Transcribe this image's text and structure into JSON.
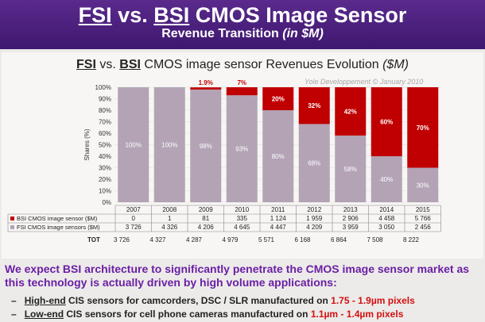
{
  "header": {
    "title_fsi": "FSI",
    "title_vs": "vs.",
    "title_bsi": "BSI",
    "title_rest": "CMOS Image Sensor",
    "subtitle_main": "Revenue Transition",
    "subtitle_unit": "(in $M)"
  },
  "chart_data": {
    "type": "bar",
    "stacked": true,
    "title_fsi": "FSI",
    "title_vs": "vs.",
    "title_bsi": "BSI",
    "title_rest": "CMOS image sensor Revenues Evolution",
    "title_unit": "($M)",
    "credit": "Yole Developpement © January 2010",
    "ylabel": "Shares (%)",
    "ylim": [
      0,
      100
    ],
    "yticks": [
      "0%",
      "10%",
      "20%",
      "30%",
      "40%",
      "50%",
      "60%",
      "70%",
      "80%",
      "90%",
      "100%"
    ],
    "categories": [
      "2007",
      "2008",
      "2009",
      "2010",
      "2011",
      "2012",
      "2013",
      "2014",
      "2015"
    ],
    "series": [
      {
        "name": "FSI CMOS image sensors ($M)",
        "color": "#b3a3b5",
        "shares": [
          100,
          100,
          98,
          93,
          80,
          68,
          58,
          40,
          30
        ],
        "share_labels": [
          "100%",
          "100%",
          "98%",
          "93%",
          "80%",
          "68%",
          "58%",
          "40%",
          "30%"
        ],
        "values": [
          "3 726",
          "4 326",
          "4 206",
          "4 645",
          "4 447",
          "4 209",
          "3 959",
          "3 050",
          "2 456"
        ]
      },
      {
        "name": "BSI CMOS image sensor ($M)",
        "color": "#c00000",
        "shares": [
          0,
          0,
          1.9,
          7,
          20,
          32,
          42,
          60,
          70
        ],
        "share_labels": [
          "",
          "",
          "1.9%",
          "7%",
          "20%",
          "32%",
          "42%",
          "60%",
          "70%"
        ],
        "values": [
          "0",
          "1",
          "81",
          "335",
          "1 124",
          "1 959",
          "2 906",
          "4 458",
          "5 766"
        ]
      }
    ],
    "total_label": "TOT",
    "totals": [
      "3 726",
      "4 327",
      "4 287",
      "4 979",
      "5 571",
      "6 168",
      "6 864",
      "7 508",
      "8 222"
    ]
  },
  "text": {
    "paragraph": "We expect BSI architecture to significantly penetrate the CMOS image sensor market as this technology is actually driven by high volume applications:",
    "bullet1_dash": "–",
    "bullet1_lead": "High-end",
    "bullet1_mid": "CIS sensors for camcorders, DSC / SLR manufactured on",
    "bullet1_spec": "1.75 - 1.9µm pixels",
    "bullet2_dash": "–",
    "bullet2_lead": "Low-end",
    "bullet2_mid": "CIS sensors for cell phone cameras manufactured on",
    "bullet2_spec": "1.1µm - 1.4µm pixels"
  }
}
